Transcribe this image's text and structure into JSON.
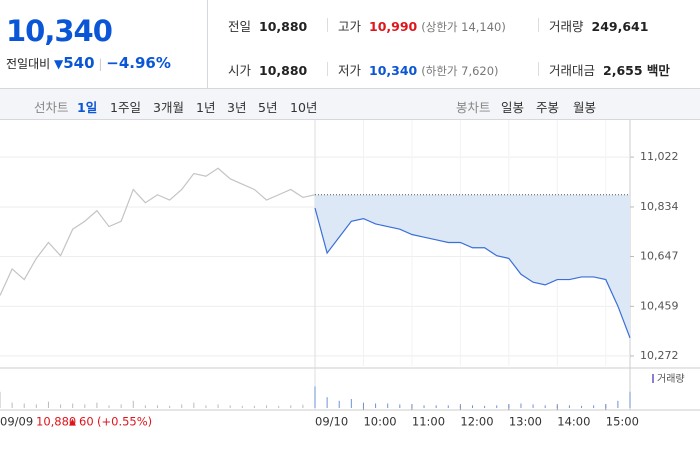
{
  "header": {
    "price": "10,340",
    "change_label": "전일대비",
    "change": "540",
    "change_rate": "−4.96%",
    "cells": [
      {
        "label": "전일",
        "value": "10,880"
      },
      {
        "label": "고가",
        "value": "10,990",
        "note": "(상한가 14,140)"
      },
      {
        "label": "거래량",
        "value": "249,641"
      },
      {
        "label": "시가",
        "value": "10,880"
      },
      {
        "label": "저가",
        "value": "10,340",
        "note": "(하한가 7,620)"
      },
      {
        "label": "거래대금",
        "value": "2,655 백만"
      }
    ]
  },
  "tabs": {
    "line_label": "선차트",
    "line": [
      "1일",
      "1주일",
      "3개월",
      "1년",
      "3년",
      "5년",
      "10년"
    ],
    "candle_label": "봉차트",
    "candle": [
      "일봉",
      "주봉",
      "월봉"
    ]
  },
  "footer": {
    "date": "09/09",
    "close": "10,880",
    "change": "60",
    "rate": "(+0.55%)"
  },
  "chart_data": {
    "type": "line",
    "x": [
      0,
      15,
      30,
      45,
      60,
      75,
      90,
      105,
      120,
      135,
      150,
      165,
      180,
      195,
      210,
      225,
      240,
      255,
      270,
      285,
      300,
      315,
      330,
      345,
      360,
      375,
      390
    ],
    "xlim": [
      0,
      390
    ],
    "days": [
      "09/09",
      "09/10"
    ],
    "xticks": [
      {
        "value": 60,
        "label": "10:00"
      },
      {
        "value": 120,
        "label": "11:00"
      },
      {
        "value": 180,
        "label": "12:00"
      },
      {
        "value": 240,
        "label": "13:00"
      },
      {
        "value": 300,
        "label": "14:00"
      },
      {
        "value": 360,
        "label": "15:00"
      }
    ],
    "ylim": [
      10234,
      11162
    ],
    "yticks": [
      {
        "value": 10272,
        "label": "10,272"
      },
      {
        "value": 10459,
        "label": "10,459"
      },
      {
        "value": 10647,
        "label": "10,647"
      },
      {
        "value": 10834,
        "label": "10,834"
      },
      {
        "value": 11022,
        "label": "11,022"
      }
    ],
    "base": 10880,
    "grid": true,
    "volume_name": "거래량",
    "volume_ylim": [
      0,
      20000
    ],
    "series": [
      {
        "color": "#c4c4c4",
        "values": [
          10500,
          10600,
          10560,
          10640,
          10700,
          10650,
          10750,
          10780,
          10820,
          10760,
          10780,
          10900,
          10850,
          10880,
          10860,
          10900,
          10960,
          10950,
          10980,
          10940,
          10920,
          10900,
          10860,
          10880,
          10900,
          10870,
          10880
        ],
        "volume": [
          9000,
          3000,
          2500,
          2000,
          3500,
          2000,
          2500,
          2000,
          3000,
          1500,
          2000,
          4000,
          1500,
          1500,
          1200,
          2000,
          3000,
          1500,
          2000,
          1500,
          1200,
          1200,
          1500,
          1200,
          1500,
          1800,
          6000
        ]
      },
      {
        "color": "#3a6fd8",
        "fill": "#dde8f7",
        "values": [
          10830,
          10660,
          10720,
          10780,
          10790,
          10770,
          10760,
          10750,
          10730,
          10720,
          10710,
          10700,
          10700,
          10680,
          10680,
          10650,
          10640,
          10580,
          10550,
          10540,
          10560,
          10560,
          10570,
          10570,
          10560,
          10460,
          10340
        ],
        "volume": [
          12000,
          6000,
          4000,
          5000,
          3000,
          2500,
          2500,
          2000,
          2000,
          1500,
          1500,
          1500,
          1200,
          1500,
          1200,
          1500,
          2000,
          2500,
          2000,
          1500,
          1500,
          1500,
          1200,
          1500,
          2000,
          4000,
          9000
        ]
      }
    ]
  }
}
